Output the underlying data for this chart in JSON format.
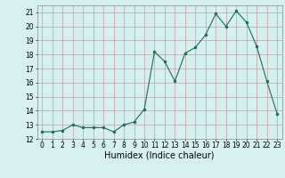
{
  "x": [
    0,
    1,
    2,
    3,
    4,
    5,
    6,
    7,
    8,
    9,
    10,
    11,
    12,
    13,
    14,
    15,
    16,
    17,
    18,
    19,
    20,
    21,
    22,
    23
  ],
  "y": [
    12.5,
    12.5,
    12.6,
    13.0,
    12.8,
    12.8,
    12.8,
    12.5,
    13.0,
    13.2,
    14.1,
    18.2,
    17.5,
    16.1,
    18.1,
    18.5,
    19.4,
    20.9,
    20.0,
    21.1,
    20.3,
    18.6,
    16.1,
    13.8
  ],
  "line_color": "#1a6b5a",
  "marker": "o",
  "marker_size": 2,
  "bg_color": "#d6f0f0",
  "grid_color": "#c0a0a0",
  "xlabel": "Humidex (Indice chaleur)",
  "xlim": [
    -0.5,
    23.5
  ],
  "ylim": [
    12,
    21.5
  ],
  "yticks": [
    12,
    13,
    14,
    15,
    16,
    17,
    18,
    19,
    20,
    21
  ],
  "xticks": [
    0,
    1,
    2,
    3,
    4,
    5,
    6,
    7,
    8,
    9,
    10,
    11,
    12,
    13,
    14,
    15,
    16,
    17,
    18,
    19,
    20,
    21,
    22,
    23
  ],
  "tick_fontsize": 5.5,
  "xlabel_fontsize": 7
}
